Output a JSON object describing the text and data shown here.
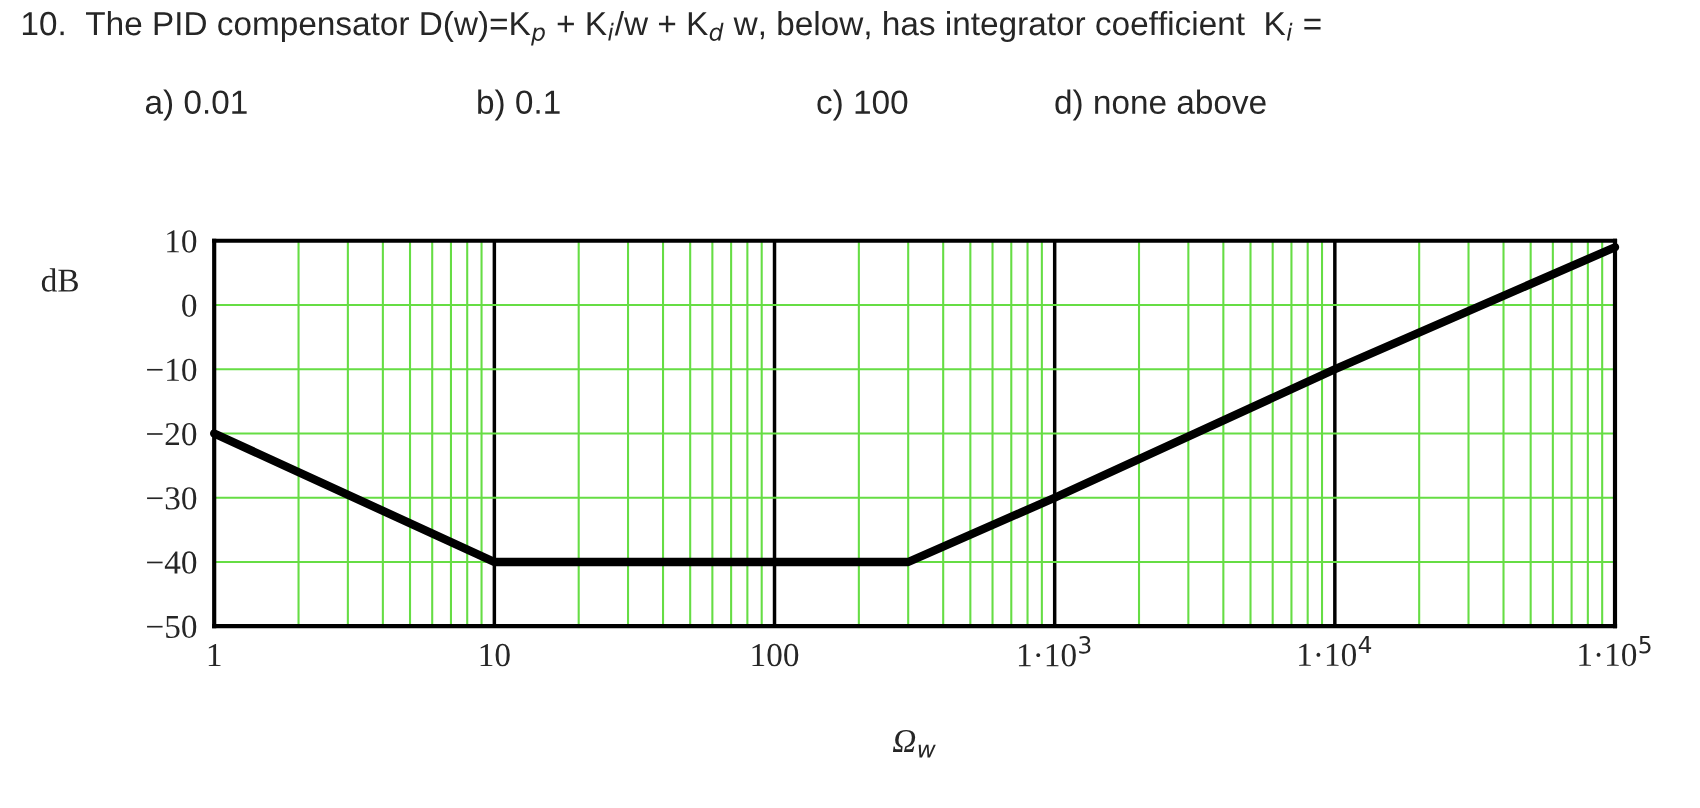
{
  "chart_data": {
    "type": "line",
    "title": "10.  The PID compensator D(w)=K$_{p}$ + K$_{i}$/w + K$_{d}$ w, below, has integrator coefficient  K$_{i}$ =",
    "annotations": [
      "a) 0.01",
      "b) 0.1",
      "c) 100",
      "d) none above"
    ],
    "xlabel": "Ω$_{w}$",
    "ylabel": "dB",
    "x": [
      1,
      10,
      300,
      1000,
      10000,
      100000
    ],
    "series": [
      {
        "color": "#000000",
        "values": [
          -20,
          -40,
          -40,
          -30,
          -10,
          9
        ]
      }
    ],
    "log": "x",
    "grid": true,
    "marker": "none",
    "line_style": "solid",
    "xlim": [
      1,
      100000
    ],
    "xticks": [
      1,
      10,
      100,
      {
        "value": 1000,
        "label": "1·10$^{3}$"
      },
      {
        "value": 10000,
        "label": "1·10$^{4}$"
      },
      {
        "value": 100000,
        "label": "1·10$^{5}$"
      }
    ],
    "ylim": [
      -50,
      10
    ],
    "yticks": [
      10,
      0,
      {
        "value": -10,
        "label": "−10"
      },
      {
        "value": -20,
        "label": "−20"
      },
      {
        "value": -30,
        "label": "−30"
      },
      {
        "value": -40,
        "label": "−40"
      },
      {
        "value": -50,
        "label": "−50"
      }
    ]
  }
}
